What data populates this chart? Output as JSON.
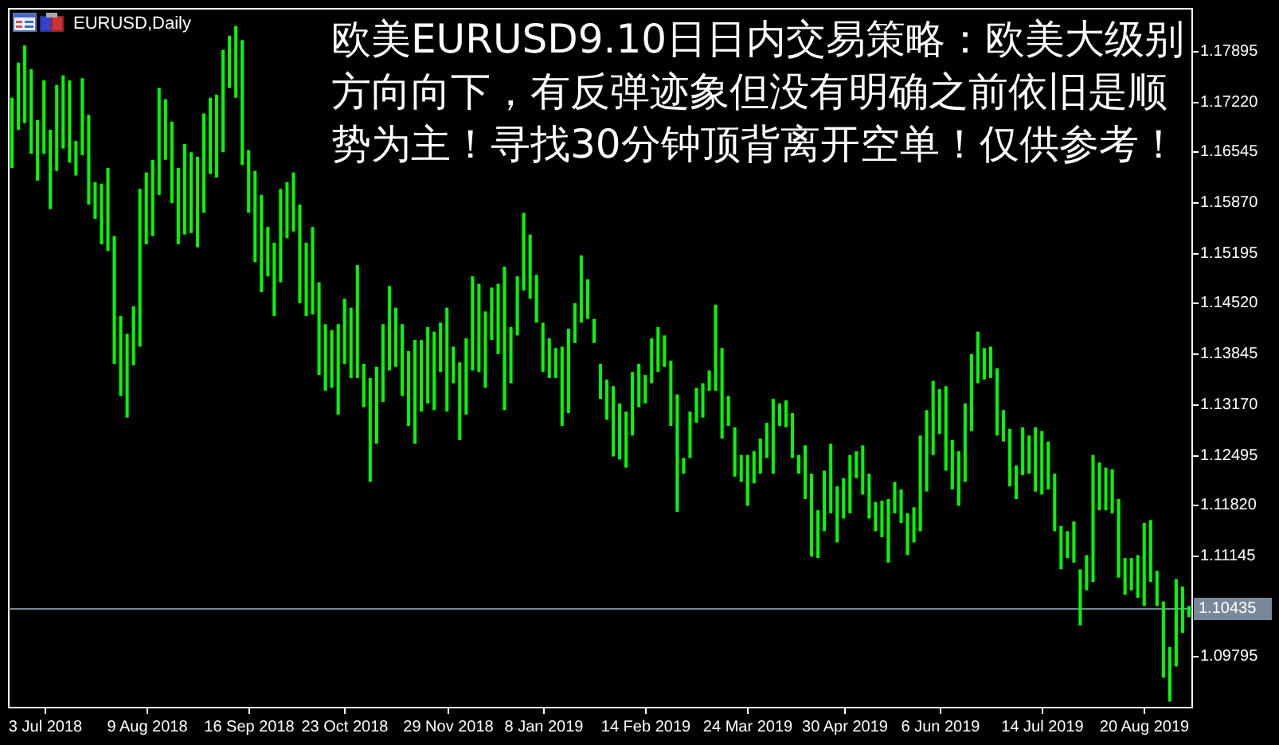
{
  "chart_data": {
    "type": "bar",
    "title": "EURUSD,Daily",
    "annotations": [
      "欧美EURUSD9.10日日内交易策略：欧美大级别方向向下，有反弹迹象但没有明确之前依旧是顺势为主！寻找30分钟顶背离开空单！仅供参考！"
    ],
    "categories": [
      null,
      null,
      null,
      null,
      null,
      "3 Jul 2018",
      null,
      null,
      null,
      null,
      null,
      null,
      null,
      null,
      null,
      null,
      null,
      null,
      null,
      null,
      null,
      "9 Aug 2018",
      null,
      null,
      null,
      null,
      null,
      null,
      null,
      null,
      null,
      null,
      null,
      null,
      null,
      null,
      null,
      "16 Sep 2018",
      null,
      null,
      null,
      null,
      null,
      null,
      null,
      null,
      null,
      null,
      null,
      null,
      null,
      null,
      "23 Oct 2018",
      null,
      null,
      null,
      null,
      null,
      null,
      null,
      null,
      null,
      null,
      null,
      null,
      null,
      null,
      null,
      "29 Nov 2018",
      null,
      null,
      null,
      null,
      null,
      null,
      null,
      null,
      null,
      null,
      null,
      null,
      null,
      null,
      "8 Jan 2019",
      null,
      null,
      null,
      null,
      null,
      null,
      null,
      null,
      null,
      null,
      null,
      null,
      null,
      null,
      null,
      "14 Feb 2019",
      null,
      null,
      null,
      null,
      null,
      null,
      null,
      null,
      null,
      null,
      null,
      null,
      null,
      null,
      null,
      "24 Mar 2019",
      null,
      null,
      null,
      null,
      null,
      null,
      null,
      null,
      null,
      null,
      null,
      null,
      null,
      null,
      "30 Apr 2019",
      null,
      null,
      null,
      null,
      null,
      null,
      null,
      null,
      null,
      null,
      null,
      null,
      null,
      null,
      "6 Jun 2019",
      null,
      null,
      null,
      null,
      null,
      null,
      null,
      null,
      null,
      null,
      null,
      null,
      null,
      null,
      null,
      "14 Jul 2019",
      null,
      null,
      null,
      null,
      null,
      null,
      null,
      null,
      null,
      null,
      null,
      null,
      null,
      null,
      null,
      "20 Aug 2019",
      null,
      null,
      null,
      null,
      null,
      null,
      null
    ],
    "base": [
      1.1633,
      1.1684,
      1.1693,
      1.1652,
      1.1616,
      1.1652,
      1.1578,
      1.1629,
      1.1659,
      1.164,
      1.1623,
      1.165,
      1.1584,
      1.1565,
      1.1531,
      1.1522,
      1.1371,
      1.1328,
      1.1299,
      1.1369,
      1.1394,
      1.1531,
      1.1542,
      1.1597,
      1.1644,
      1.1586,
      1.1531,
      1.1544,
      1.1546,
      1.1527,
      1.1573,
      1.1625,
      1.162,
      1.1654,
      1.174,
      1.1727,
      1.1637,
      1.1573,
      1.1507,
      1.1467,
      1.1488,
      1.1435,
      1.148,
      1.1539,
      1.1548,
      1.1452,
      1.1435,
      1.1437,
      1.1356,
      1.1335,
      1.1339,
      1.1303,
      1.1371,
      1.1352,
      1.1352,
      1.1313,
      1.1213,
      1.1264,
      1.132,
      1.1362,
      1.1367,
      1.1328,
      1.1288,
      1.1264,
      1.1307,
      1.1318,
      1.1309,
      1.136,
      1.1307,
      1.1345,
      1.1269,
      1.1303,
      1.1362,
      1.136,
      1.1339,
      1.1403,
      1.1384,
      1.1309,
      1.1345,
      1.1409,
      1.1469,
      1.1458,
      1.1426,
      1.136,
      1.1352,
      1.1352,
      1.1288,
      1.1305,
      1.1399,
      1.1426,
      1.1431,
      1.1399,
      1.1324,
      1.1296,
      1.1247,
      1.1243,
      1.1232,
      1.1275,
      1.1313,
      1.1318,
      1.1345,
      1.136,
      1.1367,
      1.1288,
      1.1173,
      1.1224,
      1.1245,
      1.1292,
      1.1299,
      1.1335,
      1.1335,
      1.1271,
      1.1288,
      1.122,
      1.1213,
      1.1181,
      1.1211,
      1.1224,
      1.1245,
      1.1224,
      1.1288,
      1.1286,
      1.1245,
      1.1224,
      1.119,
      1.1113,
      1.1111,
      1.1147,
      1.1171,
      1.1132,
      1.1164,
      1.1171,
      1.1218,
      1.1196,
      1.1164,
      1.1147,
      1.1139,
      1.1105,
      1.1171,
      1.1158,
      1.1115,
      1.1132,
      1.1147,
      1.12,
      1.1249,
      1.1277,
      1.1228,
      1.1203,
      1.1181,
      1.1213,
      1.1281,
      1.1345,
      1.135,
      1.1352,
      1.1275,
      1.1267,
      1.1207,
      1.119,
      1.1222,
      1.1224,
      1.12,
      1.1196,
      1.1203,
      1.1147,
      1.1096,
      1.1111,
      1.1105,
      1.1021,
      1.1068,
      1.1079,
      1.1175,
      1.1175,
      1.1171,
      1.1085,
      1.1062,
      1.1068,
      1.1058,
      1.1047,
      1.1079,
      1.1047,
      1.0951,
      1.0919,
      1.0966,
      1.1011,
      1.1032
    ],
    "values": [
      0.0094,
      0.009,
      0.0104,
      0.0113,
      0.0081,
      0.0098,
      0.0106,
      0.0115,
      0.0098,
      0.011,
      0.0046,
      0.0103,
      0.012,
      0.0049,
      0.0081,
      0.0111,
      0.0171,
      0.0107,
      0.0112,
      0.0079,
      0.0211,
      0.0096,
      0.0102,
      0.0143,
      0.0081,
      0.0109,
      0.0102,
      0.0121,
      0.0108,
      0.0121,
      0.0133,
      0.0102,
      0.0111,
      0.0137,
      0.007,
      0.0096,
      0.0167,
      0.0084,
      0.0122,
      0.013,
      0.0066,
      0.0098,
      0.0125,
      0.0075,
      0.0079,
      0.0132,
      0.0098,
      0.0117,
      0.0124,
      0.0089,
      0.0077,
      0.0121,
      0.0087,
      0.0094,
      0.0151,
      0.0058,
      0.0139,
      0.0103,
      0.0104,
      0.0113,
      0.0079,
      0.0096,
      0.01,
      0.0139,
      0.0096,
      0.0102,
      0.0105,
      0.0066,
      0.0139,
      0.0049,
      0.0104,
      0.0102,
      0.0126,
      0.0118,
      0.0102,
      0.007,
      0.0094,
      0.0192,
      0.0075,
      0.0079,
      0.0104,
      0.0086,
      0.0064,
      0.0066,
      0.0053,
      0.004,
      0.0106,
      0.0113,
      0.0053,
      0.009,
      0.0053,
      0.0032,
      0.0047,
      0.0054,
      0.0094,
      0.0075,
      0.0075,
      0.0085,
      0.0058,
      0.0038,
      0.006,
      0.006,
      0.0042,
      0.0087,
      0.0157,
      0.0021,
      0.0062,
      0.0047,
      0.0046,
      0.0027,
      0.0115,
      0.0121,
      0.004,
      0.0066,
      0.0036,
      0.0068,
      0.0043,
      0.0047,
      0.0047,
      0.01,
      0.003,
      0.0036,
      0.006,
      0.0025,
      0.0072,
      0.0111,
      0.0064,
      0.0081,
      0.0093,
      0.0075,
      0.0054,
      0.0078,
      0.0036,
      0.0066,
      0.006,
      0.0039,
      0.0049,
      0.0085,
      0.0042,
      0.0045,
      0.0056,
      0.0047,
      0.0128,
      0.0109,
      0.0099,
      0.006,
      0.0113,
      0.0066,
      0.0073,
      0.0105,
      0.0103,
      0.0069,
      0.0042,
      0.0042,
      0.009,
      0.0042,
      0.0077,
      0.0045,
      0.0064,
      0.0051,
      0.0086,
      0.0085,
      0.0064,
      0.0077,
      0.0058,
      0.0036,
      0.0055,
      0.0075,
      0.0047,
      0.017,
      0.0064,
      0.0057,
      0.0059,
      0.0105,
      0.0049,
      0.0043,
      0.0057,
      0.0111,
      0.0083,
      0.0047,
      0.0102,
      0.0073,
      0.0117,
      0.0062,
      0.0015
    ],
    "color": "#00ff00",
    "ylim": [
      1.0911,
      1.1846
    ],
    "yticks": [
      1.09795,
      1.11145,
      {
        "value": 1.1182,
        "label": "1.11820"
      },
      1.12495,
      {
        "value": 1.1317,
        "label": "1.13170"
      },
      1.13845,
      {
        "value": 1.1452,
        "label": "1.14520"
      },
      1.15195,
      {
        "value": 1.1587,
        "label": "1.15870"
      },
      1.16545,
      {
        "value": 1.1722,
        "label": "1.17220"
      },
      1.17895
    ],
    "ref_lines": [
      {
        "axis": "y",
        "value": 1.10435,
        "label": "1.10435",
        "color": "#778899"
      }
    ]
  }
}
